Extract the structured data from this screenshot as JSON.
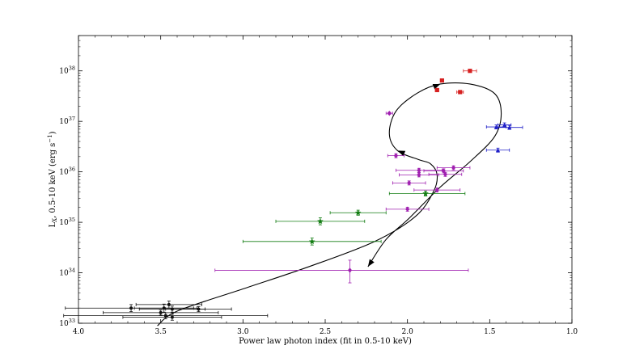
{
  "chart_data": {
    "type": "scatter",
    "xlabel": "Power law photon index (fit in 0.5-10 keV)",
    "ylabel_main": "L",
    "ylabel_sub": "X",
    "ylabel_rest": ", 0.5-10 keV (erg s",
    "ylabel_sup": "−1",
    "ylabel_end": ")",
    "xlim": [
      4.0,
      1.0
    ],
    "ylim_log10": [
      33.0,
      38.7
    ],
    "y_scale": "log",
    "x_ticks": [
      "4.0",
      "3.5",
      "3.0",
      "2.5",
      "2.0",
      "1.5",
      "1.0"
    ],
    "x_tick_values": [
      4.0,
      3.5,
      3.0,
      2.5,
      2.0,
      1.5,
      1.0
    ],
    "y_tick_exponents": [
      "33",
      "34",
      "35",
      "36",
      "37",
      "38"
    ],
    "y_tick_base": "10",
    "grid": false,
    "series": [
      {
        "color": "#d62020",
        "marker": "square",
        "points": [
          {
            "x": 1.62,
            "y": 38.0,
            "xerr": [
              0.04,
              0.04
            ],
            "yerr": [
              0.02,
              0.02
            ]
          },
          {
            "x": 1.68,
            "y": 37.58,
            "xerr": [
              0.02,
              0.02
            ],
            "yerr": [
              0.02,
              0.02
            ]
          },
          {
            "x": 1.82,
            "y": 37.62,
            "xerr": [
              0.01,
              0.01
            ],
            "yerr": [
              0.02,
              0.02
            ]
          },
          {
            "x": 1.79,
            "y": 37.81,
            "xerr": [
              0.01,
              0.01
            ],
            "yerr": [
              0.02,
              0.02
            ]
          }
        ]
      },
      {
        "color": "#2020c8",
        "marker": "triangle",
        "points": [
          {
            "x": 1.46,
            "y": 36.89,
            "xerr": [
              0.06,
              0.06
            ],
            "yerr": [
              0.04,
              0.04
            ]
          },
          {
            "x": 1.41,
            "y": 36.93,
            "xerr": [
              0.04,
              0.04
            ],
            "yerr": [
              0.04,
              0.04
            ]
          },
          {
            "x": 1.38,
            "y": 36.88,
            "xerr": [
              0.08,
              0.08
            ],
            "yerr": [
              0.04,
              0.04
            ]
          },
          {
            "x": 1.45,
            "y": 36.43,
            "xerr": [
              0.07,
              0.07
            ],
            "yerr": [
              0.04,
              0.04
            ]
          }
        ]
      },
      {
        "color": "#a020b0",
        "marker": "diamond",
        "points": [
          {
            "x": 2.11,
            "y": 37.16,
            "xerr": [
              0.02,
              0.02
            ],
            "yerr": [
              0.02,
              0.02
            ]
          },
          {
            "x": 2.07,
            "y": 36.32,
            "xerr": [
              0.05,
              0.05
            ],
            "yerr": [
              0.04,
              0.04
            ]
          },
          {
            "x": 1.72,
            "y": 36.08,
            "xerr": [
              0.1,
              0.1
            ],
            "yerr": [
              0.04,
              0.04
            ]
          },
          {
            "x": 1.78,
            "y": 36.02,
            "xerr": [
              0.12,
              0.12
            ],
            "yerr": [
              0.04,
              0.04
            ]
          },
          {
            "x": 1.93,
            "y": 36.03,
            "xerr": [
              0.14,
              0.14
            ],
            "yerr": [
              0.04,
              0.04
            ]
          },
          {
            "x": 1.77,
            "y": 35.95,
            "xerr": [
              0.1,
              0.1
            ],
            "yerr": [
              0.04,
              0.04
            ]
          },
          {
            "x": 1.93,
            "y": 35.94,
            "xerr": [
              0.12,
              0.12
            ],
            "yerr": [
              0.04,
              0.04
            ]
          },
          {
            "x": 1.99,
            "y": 35.78,
            "xerr": [
              0.1,
              0.1
            ],
            "yerr": [
              0.04,
              0.04
            ]
          },
          {
            "x": 1.82,
            "y": 35.64,
            "xerr": [
              0.14,
              0.14
            ],
            "yerr": [
              0.04,
              0.04
            ]
          },
          {
            "x": 2.0,
            "y": 35.26,
            "xerr": [
              0.13,
              0.13
            ],
            "yerr": [
              0.04,
              0.04
            ]
          },
          {
            "x": 2.35,
            "y": 34.05,
            "xerr": [
              0.82,
              0.72
            ],
            "yerr": [
              0.25,
              0.2
            ]
          }
        ]
      },
      {
        "color": "#127c12",
        "marker": "star",
        "points": [
          {
            "x": 1.89,
            "y": 35.57,
            "xerr": [
              0.22,
              0.24
            ],
            "yerr": [
              0.05,
              0.05
            ]
          },
          {
            "x": 2.3,
            "y": 35.19,
            "xerr": [
              0.17,
              0.17
            ],
            "yerr": [
              0.05,
              0.05
            ]
          },
          {
            "x": 2.53,
            "y": 35.02,
            "xerr": [
              0.27,
              0.27
            ],
            "yerr": [
              0.07,
              0.07
            ]
          },
          {
            "x": 2.58,
            "y": 34.62,
            "xerr": [
              0.42,
              0.42
            ],
            "yerr": [
              0.07,
              0.07
            ]
          }
        ]
      },
      {
        "color": "#111111",
        "marker": "circle",
        "points": [
          {
            "x": 3.68,
            "y": 33.3,
            "xerr": [
              0.4,
              0.4
            ],
            "yerr": [
              0.07,
              0.07
            ]
          },
          {
            "x": 3.45,
            "y": 33.37,
            "xerr": [
              0.2,
              0.2
            ],
            "yerr": [
              0.07,
              0.07
            ]
          },
          {
            "x": 3.48,
            "y": 33.3,
            "xerr": [
              0.18,
              0.18
            ],
            "yerr": [
              0.08,
              0.08
            ]
          },
          {
            "x": 3.43,
            "y": 33.28,
            "xerr": [
              0.2,
              0.2
            ],
            "yerr": [
              0.06,
              0.06
            ]
          },
          {
            "x": 3.27,
            "y": 33.28,
            "xerr": [
              0.2,
              0.2
            ],
            "yerr": [
              0.05,
              0.05
            ]
          },
          {
            "x": 3.5,
            "y": 33.21,
            "xerr": [
              0.35,
              0.35
            ],
            "yerr": [
              0.05,
              0.05
            ]
          },
          {
            "x": 3.47,
            "y": 33.15,
            "xerr": [
              0.62,
              0.62
            ],
            "yerr": [
              0.06,
              0.06
            ]
          },
          {
            "x": 3.43,
            "y": 33.12,
            "xerr": [
              0.3,
              0.3
            ],
            "yerr": [
              0.06,
              0.06
            ]
          }
        ]
      }
    ],
    "track": {
      "color": "#000000",
      "points": [
        [
          3.52,
          32.95
        ],
        [
          3.4,
          33.24
        ],
        [
          3.0,
          33.68
        ],
        [
          2.6,
          34.12
        ],
        [
          2.2,
          34.62
        ],
        [
          1.95,
          35.12
        ],
        [
          1.84,
          35.62
        ],
        [
          1.82,
          35.95
        ],
        [
          1.86,
          36.16
        ],
        [
          1.93,
          36.24
        ],
        [
          2.06,
          36.42
        ],
        [
          2.11,
          36.75
        ],
        [
          2.07,
          37.2
        ],
        [
          1.94,
          37.56
        ],
        [
          1.8,
          37.74
        ],
        [
          1.62,
          37.74
        ],
        [
          1.47,
          37.55
        ],
        [
          1.43,
          37.15
        ],
        [
          1.47,
          36.7
        ],
        [
          1.62,
          36.2
        ],
        [
          1.8,
          35.7
        ],
        [
          1.99,
          35.08
        ],
        [
          2.13,
          34.66
        ],
        [
          2.24,
          34.12
        ]
      ],
      "arrows": [
        {
          "after_index": 10,
          "dir": "right"
        },
        {
          "after_index": 14,
          "dir": "left"
        },
        {
          "after_index": 23,
          "dir": "end"
        }
      ]
    }
  }
}
